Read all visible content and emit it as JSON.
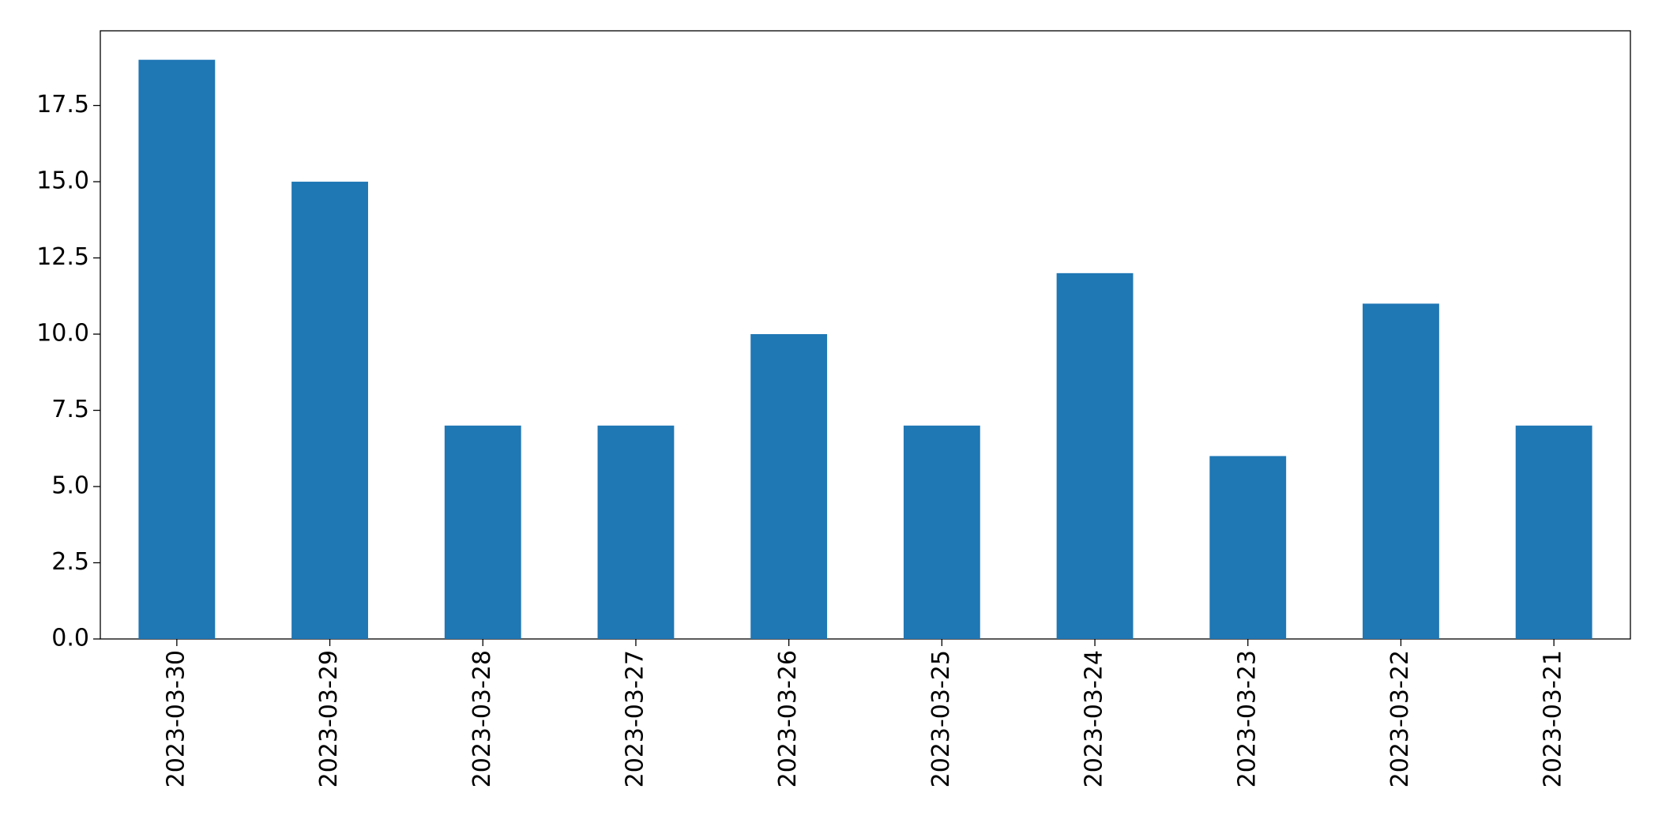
{
  "chart_data": {
    "type": "bar",
    "categories": [
      "2023-03-30",
      "2023-03-29",
      "2023-03-28",
      "2023-03-27",
      "2023-03-26",
      "2023-03-25",
      "2023-03-24",
      "2023-03-23",
      "2023-03-22",
      "2023-03-21"
    ],
    "values": [
      19,
      15,
      7,
      7,
      10,
      7,
      12,
      6,
      11,
      7
    ],
    "color": "#1f77b4",
    "ylim": [
      0,
      19.95
    ],
    "yticks": [
      {
        "value": 0,
        "label": "0.0"
      },
      2.5,
      {
        "value": 5,
        "label": "5.0"
      },
      7.5,
      {
        "value": 10,
        "label": "10.0"
      },
      12.5,
      {
        "value": 15,
        "label": "15.0"
      },
      17.5
    ],
    "grid": false
  }
}
